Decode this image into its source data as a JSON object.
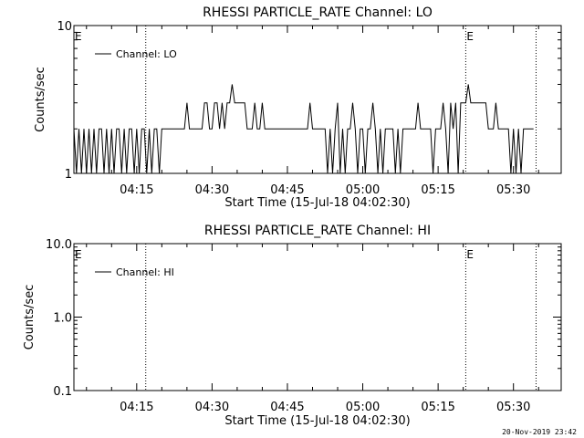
{
  "chart_data": [
    {
      "type": "line",
      "title": "RHESSI PARTICLE_RATE Channel: LO",
      "xlabel": "Start Time (15-Jul-18 04:02:30)",
      "ylabel": "Counts/sec",
      "y_scale": "log",
      "ylim": [
        1,
        10
      ],
      "y_ticks": [
        {
          "value": 1,
          "label": "1"
        },
        {
          "value": 10,
          "label": "10"
        }
      ],
      "x_tick_labels": [
        "04:15",
        "04:30",
        "04:45",
        "05:00",
        "05:15",
        "05:30"
      ],
      "x_ticks_minutes": [
        15,
        30,
        45,
        60,
        75,
        90
      ],
      "xlim_minutes": [
        2.5,
        99.5
      ],
      "legend": {
        "label": "Channel: LO",
        "placement": "top-left"
      },
      "markers": [
        {
          "minute": 16.8,
          "label": "E"
        },
        {
          "minute": 80.5,
          "label": "E"
        },
        {
          "minute": 94.5,
          "label": ""
        }
      ],
      "series": [
        {
          "name": "Channel: LO",
          "x_minutes": [
            2.5,
            3.0,
            3.5,
            4.0,
            4.5,
            5.0,
            5.5,
            6.0,
            6.5,
            7.0,
            7.5,
            8.0,
            8.5,
            9.0,
            9.5,
            10.0,
            10.5,
            11.0,
            11.5,
            12.0,
            12.5,
            13.0,
            13.5,
            14.0,
            14.5,
            15.0,
            15.5,
            16.0,
            16.5,
            17.0,
            17.5,
            18.0,
            18.5,
            19.0,
            19.5,
            20.0,
            20.5,
            21.0,
            21.5,
            22.0,
            22.5,
            23.0,
            23.5,
            24.0,
            24.5,
            25.0,
            25.5,
            26.0,
            26.5,
            27.0,
            27.5,
            28.0,
            28.5,
            29.0,
            29.5,
            30.0,
            30.5,
            31.0,
            31.5,
            32.0,
            32.5,
            33.0,
            33.5,
            34.0,
            34.5,
            35.0,
            35.5,
            36.0,
            36.5,
            37.0,
            37.5,
            38.0,
            38.5,
            39.0,
            39.5,
            40.0,
            40.5,
            41.0,
            41.5,
            42.0,
            42.5,
            43.0,
            43.5,
            44.0,
            44.5,
            45.0,
            45.5,
            46.0,
            46.5,
            47.0,
            47.5,
            48.0,
            48.5,
            49.0,
            49.5,
            50.0,
            50.5,
            51.0,
            51.5,
            52.0,
            52.5,
            53.0,
            53.5,
            54.0,
            54.5,
            55.0,
            55.5,
            56.0,
            56.5,
            57.0,
            57.5,
            58.0,
            58.5,
            59.0,
            59.5,
            60.0,
            60.5,
            61.0,
            61.5,
            62.0,
            62.5,
            63.0,
            63.5,
            64.0,
            64.5,
            65.0,
            65.5,
            66.0,
            66.5,
            67.0,
            67.5,
            68.0,
            68.5,
            69.0,
            69.5,
            70.0,
            70.5,
            71.0,
            71.5,
            72.0,
            72.5,
            73.0,
            73.5,
            74.0,
            74.5,
            75.0,
            75.5,
            76.0,
            76.5,
            77.0,
            77.5,
            78.0,
            78.5,
            79.0,
            79.5,
            80.0,
            80.5,
            81.0,
            81.5,
            82.0,
            82.5,
            83.0,
            83.5,
            84.0,
            84.5,
            85.0,
            85.5,
            86.0,
            86.5,
            87.0,
            87.5,
            88.0,
            88.5,
            89.0,
            89.5,
            90.0,
            90.5,
            91.0,
            91.5,
            92.0,
            92.5,
            93.0,
            93.5,
            94.0
          ],
          "values": [
            2,
            1,
            2,
            1,
            2,
            1,
            2,
            1,
            2,
            1,
            2,
            2,
            1,
            2,
            1,
            2,
            1,
            2,
            2,
            1,
            2,
            1,
            2,
            2,
            1,
            2,
            1,
            2,
            2,
            1,
            2,
            1,
            2,
            2,
            1,
            2,
            2,
            2,
            2,
            2,
            2,
            2,
            2,
            2,
            2,
            3,
            2,
            2,
            2,
            2,
            2,
            2,
            3,
            3,
            2,
            2,
            3,
            3,
            2,
            3,
            2,
            3,
            3,
            4,
            3,
            3,
            3,
            3,
            3,
            2,
            2,
            2,
            3,
            2,
            2,
            3,
            2,
            2,
            2,
            2,
            2,
            2,
            2,
            2,
            2,
            2,
            2,
            2,
            2,
            2,
            2,
            2,
            2,
            2,
            3,
            2,
            2,
            2,
            2,
            2,
            2,
            1,
            2,
            1,
            2,
            3,
            1,
            2,
            1,
            2,
            2,
            3,
            2,
            1,
            2,
            2,
            1,
            2,
            2,
            3,
            2,
            1,
            2,
            1,
            2,
            2,
            2,
            2,
            1,
            2,
            1,
            2,
            2,
            2,
            2,
            2,
            2,
            3,
            2,
            2,
            2,
            2,
            2,
            1,
            2,
            2,
            2,
            3,
            2,
            1,
            3,
            2,
            3,
            1,
            3,
            3,
            3,
            4,
            3,
            3,
            3,
            3,
            3,
            3,
            3,
            2,
            2,
            2,
            3,
            2,
            2,
            2,
            2,
            2,
            1,
            2,
            1,
            2,
            1,
            2,
            2,
            2,
            2,
            2
          ]
        }
      ]
    },
    {
      "type": "line",
      "title": "RHESSI PARTICLE_RATE Channel: HI",
      "xlabel": "Start Time (15-Jul-18 04:02:30)",
      "ylabel": "Counts/sec",
      "y_scale": "log",
      "ylim": [
        0.1,
        10
      ],
      "y_ticks": [
        {
          "value": 0.1,
          "label": "0.1"
        },
        {
          "value": 1,
          "label": "1.0"
        },
        {
          "value": 10,
          "label": "10.0"
        }
      ],
      "x_tick_labels": [
        "04:15",
        "04:30",
        "04:45",
        "05:00",
        "05:15",
        "05:30"
      ],
      "x_ticks_minutes": [
        15,
        30,
        45,
        60,
        75,
        90
      ],
      "xlim_minutes": [
        2.5,
        99.5
      ],
      "legend": {
        "label": "Channel: HI",
        "placement": "top-left"
      },
      "markers": [
        {
          "minute": 16.8,
          "label": "E"
        },
        {
          "minute": 80.5,
          "label": "E"
        },
        {
          "minute": 94.5,
          "label": ""
        }
      ],
      "series": [
        {
          "name": "Channel: HI",
          "x_minutes": [],
          "values": []
        }
      ]
    }
  ],
  "footer": {
    "timestamp": "20-Nov-2019 23:42"
  }
}
